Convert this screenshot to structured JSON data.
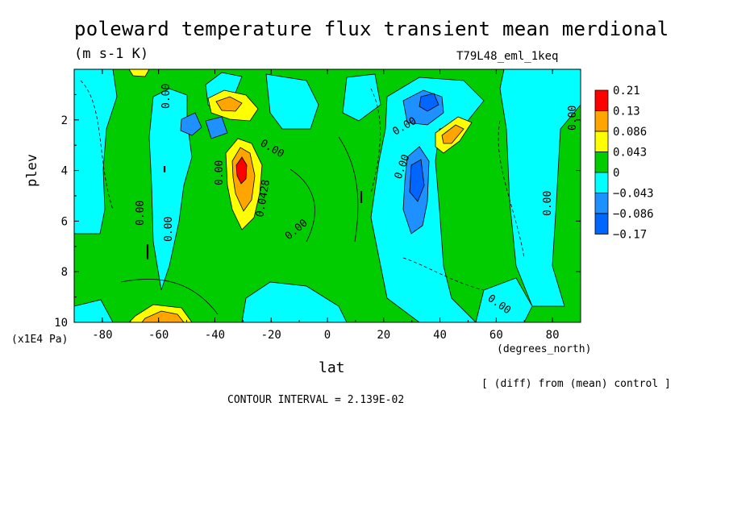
{
  "chart_data": {
    "type": "heatmap",
    "title": "poleward temperature flux transient mean merdional",
    "units": "(m s-1 K)",
    "run_label": "T79L48_eml_1keq",
    "xlabel": "lat",
    "ylabel": "plev",
    "x_units": "(degrees_north)",
    "y_units": "(x1E4 Pa)",
    "xlim": [
      -90,
      90
    ],
    "ylim": [
      0,
      10
    ],
    "y_inverted": true,
    "x_ticks": [
      -80,
      -60,
      -40,
      -20,
      0,
      20,
      40,
      60,
      80
    ],
    "x_tick_labels": [
      "-80",
      "-60",
      "-40",
      "-20",
      "0",
      "20",
      "40",
      "60",
      "80"
    ],
    "y_ticks": [
      2,
      4,
      6,
      8,
      10
    ],
    "y_tick_labels": [
      "2",
      "4",
      "6",
      "8",
      "10"
    ],
    "contour_interval_label": "CONTOUR INTERVAL = 2.139E-02",
    "footnote": "[ (diff) from (mean) control ]",
    "colorbar": {
      "levels": [
        "0.21",
        "0.13",
        "0.086",
        "0.043",
        "0",
        "−0.043",
        "−0.086",
        "−0.17"
      ],
      "colors": [
        "#ff0000",
        "#ffa500",
        "#ffff00",
        "#00cc00",
        "#00ffff",
        "#1e90ff",
        "#0066ff"
      ]
    },
    "contour_labels": [
      "0.00",
      "0.00",
      "0.00",
      "0.00",
      "0.00",
      "0.00",
      "0.00",
      "0.00",
      "0.00",
      "0.00",
      "0.0428",
      "0.00"
    ],
    "features": [
      {
        "lat": -31,
        "plev": 4.0,
        "value": 0.21,
        "sign": "positive maximum"
      },
      {
        "lat": -35,
        "plev": 1.5,
        "value": 0.13,
        "sign": "positive"
      },
      {
        "lat": 32,
        "plev": 1.5,
        "value": -0.086,
        "sign": "negative"
      },
      {
        "lat": 30,
        "plev": 4.5,
        "value": -0.086,
        "sign": "negative"
      },
      {
        "lat": 45,
        "plev": 2.5,
        "value": 0.086,
        "sign": "positive"
      },
      {
        "lat": -57,
        "plev": 9.8,
        "value": 0.086,
        "sign": "positive"
      }
    ]
  }
}
